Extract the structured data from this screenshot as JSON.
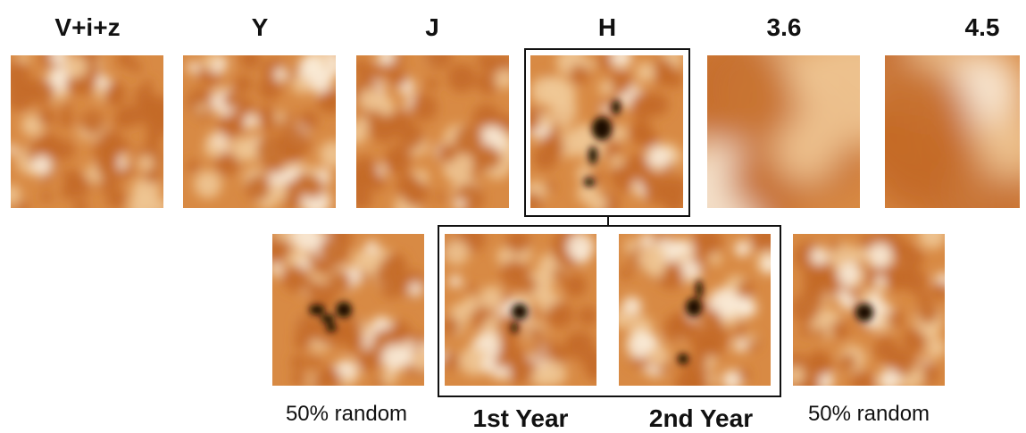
{
  "top_row": {
    "panels": [
      {
        "label": "V+i+z"
      },
      {
        "label": "Y"
      },
      {
        "label": "J"
      },
      {
        "label": "H"
      },
      {
        "label": "3.6"
      },
      {
        "label": "4.5"
      }
    ]
  },
  "bottom_row": {
    "panels": [
      {
        "caption": "50% random"
      },
      {
        "caption": "1st Year"
      },
      {
        "caption": "2nd Year"
      },
      {
        "caption": "50% random"
      }
    ]
  }
}
